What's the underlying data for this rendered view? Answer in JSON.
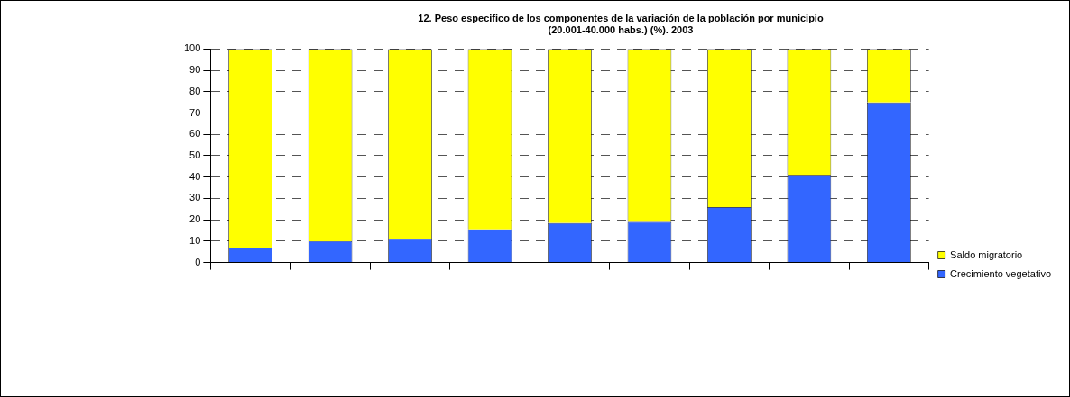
{
  "chart_data": {
    "type": "bar",
    "title": [
      "12. Peso especifico de los componentes de la variación de la población por municipio",
      "(20.001-40.000 habs.) (%). 2003"
    ],
    "categories": [
      null,
      null,
      null,
      null,
      null,
      null,
      null,
      null,
      null
    ],
    "stacked": true,
    "series": [
      {
        "name": "Crecimiento vegetativo",
        "color": "#3366ff",
        "values": [
          7,
          10,
          11,
          15.5,
          18.5,
          19,
          26,
          41,
          75
        ]
      },
      {
        "name": "Saldo migratorio",
        "color": "#ffff00",
        "values": [
          93,
          90,
          89,
          84.5,
          81.5,
          81,
          74,
          59,
          25
        ]
      }
    ],
    "ylim": [
      0,
      100
    ],
    "yticks": [
      0,
      10,
      20,
      30,
      40,
      50,
      60,
      70,
      80,
      90,
      100
    ],
    "grid": "y",
    "legend": "right"
  }
}
